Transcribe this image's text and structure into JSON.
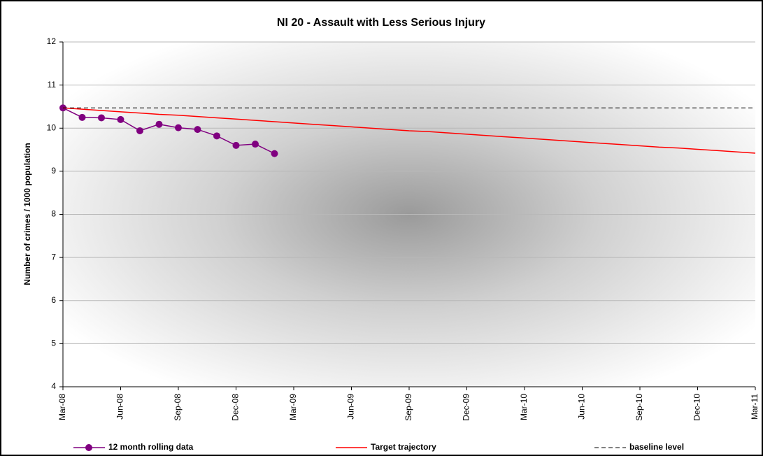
{
  "chart_data": {
    "type": "line",
    "title": "NI 20 - Assault with Less Serious Injury",
    "y_label": "Number of crimes / 1000 population",
    "categories": [
      "Mar-08",
      null,
      null,
      "Jun-08",
      null,
      null,
      "Sep-08",
      null,
      null,
      "Dec-08",
      null,
      null,
      "Mar-09",
      null,
      null,
      "Jun-09",
      null,
      null,
      "Sep-09",
      null,
      null,
      "Dec-09",
      null,
      null,
      "Mar-10",
      null,
      null,
      "Jun-10",
      null,
      null,
      "Sep-10",
      null,
      null,
      "Dec-10",
      null,
      null,
      "Mar-11"
    ],
    "series": [
      {
        "name": "12 month rolling data",
        "color": "#800080",
        "marker": "circle",
        "dashed": false,
        "values": [
          10.47,
          10.25,
          10.24,
          10.2,
          9.94,
          10.09,
          10.01,
          9.97,
          9.82,
          9.6,
          9.63,
          9.41,
          null,
          null,
          null,
          null,
          null,
          null,
          null,
          null,
          null,
          null,
          null,
          null,
          null,
          null,
          null,
          null,
          null,
          null,
          null,
          null,
          null,
          null,
          null,
          null,
          null
        ]
      },
      {
        "name": "Target trajectory",
        "color": "#ff0000",
        "marker": "none",
        "dashed": false,
        "values": [
          10.47,
          10.44,
          10.41,
          10.38,
          10.35,
          10.32,
          10.3,
          10.27,
          10.24,
          10.21,
          10.18,
          10.15,
          10.12,
          10.09,
          10.06,
          10.03,
          10.0,
          9.97,
          9.94,
          9.92,
          9.89,
          9.86,
          9.83,
          9.8,
          9.77,
          9.74,
          9.71,
          9.68,
          9.65,
          9.62,
          9.59,
          9.56,
          9.54,
          9.51,
          9.48,
          9.45,
          9.42
        ]
      },
      {
        "name": "baseline level",
        "color": "#000000",
        "marker": "none",
        "dashed": true,
        "values": [
          10.47,
          10.47,
          10.47,
          10.47,
          10.47,
          10.47,
          10.47,
          10.47,
          10.47,
          10.47,
          10.47,
          10.47,
          10.47,
          10.47,
          10.47,
          10.47,
          10.47,
          10.47,
          10.47,
          10.47,
          10.47,
          10.47,
          10.47,
          10.47,
          10.47,
          10.47,
          10.47,
          10.47,
          10.47,
          10.47,
          10.47,
          10.47,
          10.47,
          10.47,
          10.47,
          10.47,
          10.47
        ]
      }
    ],
    "ylim": [
      4,
      12
    ],
    "yticks": [
      4,
      5,
      6,
      7,
      8,
      9,
      10,
      11,
      12
    ],
    "grid": true
  }
}
